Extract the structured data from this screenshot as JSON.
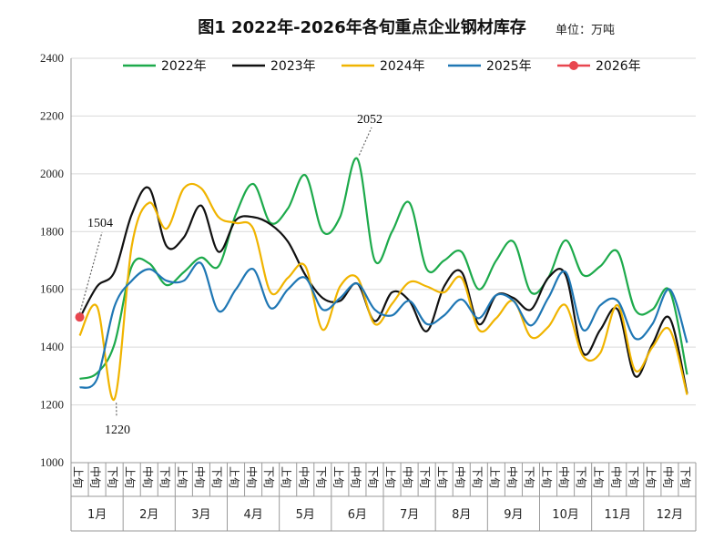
{
  "chart_data": {
    "type": "line",
    "title": "图1  2022年-2026年各旬重点企业钢材库存",
    "unit": "单位：万吨",
    "ylim": [
      1000,
      2400
    ],
    "yticks": [
      1000,
      1200,
      1400,
      1600,
      1800,
      2000,
      2200,
      2400
    ],
    "grid": true,
    "legend_position": "top",
    "dekads": [
      "上旬",
      "中旬",
      "下旬"
    ],
    "months": [
      "1月",
      "2月",
      "3月",
      "4月",
      "5月",
      "6月",
      "7月",
      "8月",
      "9月",
      "10月",
      "11月",
      "12月"
    ],
    "series": [
      {
        "name": "2022年",
        "color": "#1daa4b",
        "values": [
          1290,
          1310,
          1410,
          1680,
          1690,
          1615,
          1660,
          1710,
          1680,
          1860,
          1965,
          1830,
          1880,
          1995,
          1800,
          1850,
          2052,
          1700,
          1800,
          1900,
          1670,
          1700,
          1730,
          1600,
          1700,
          1765,
          1590,
          1640,
          1770,
          1650,
          1680,
          1730,
          1530,
          1530,
          1595,
          1305
        ]
      },
      {
        "name": "2023年",
        "color": "#111111",
        "values": [
          1500,
          1610,
          1660,
          1860,
          1950,
          1750,
          1780,
          1890,
          1730,
          1840,
          1850,
          1825,
          1765,
          1650,
          1570,
          1560,
          1620,
          1490,
          1590,
          1560,
          1455,
          1610,
          1660,
          1480,
          1580,
          1570,
          1530,
          1640,
          1650,
          1380,
          1460,
          1530,
          1300,
          1410,
          1500,
          1240
        ]
      },
      {
        "name": "2024年",
        "color": "#f0b400",
        "values": [
          1440,
          1540,
          1220,
          1750,
          1900,
          1810,
          1950,
          1950,
          1850,
          1830,
          1810,
          1590,
          1640,
          1680,
          1460,
          1610,
          1640,
          1480,
          1550,
          1625,
          1610,
          1590,
          1640,
          1460,
          1500,
          1560,
          1435,
          1470,
          1545,
          1370,
          1380,
          1545,
          1320,
          1400,
          1460,
          1235
        ]
      },
      {
        "name": "2025年",
        "color": "#1f77b4",
        "values": [
          1260,
          1290,
          1540,
          1630,
          1670,
          1630,
          1630,
          1690,
          1525,
          1600,
          1670,
          1535,
          1600,
          1640,
          1530,
          1570,
          1620,
          1530,
          1510,
          1560,
          1480,
          1510,
          1565,
          1500,
          1580,
          1560,
          1475,
          1570,
          1660,
          1460,
          1545,
          1560,
          1430,
          1480,
          1600,
          1415
        ]
      },
      {
        "name": "2026年",
        "color": "#e8464f",
        "marker": true,
        "values": [
          1504
        ]
      }
    ],
    "annotations": [
      {
        "text": "1504",
        "value": 1504
      },
      {
        "text": "1220",
        "value": 1220
      },
      {
        "text": "2052",
        "value": 2052
      }
    ]
  }
}
